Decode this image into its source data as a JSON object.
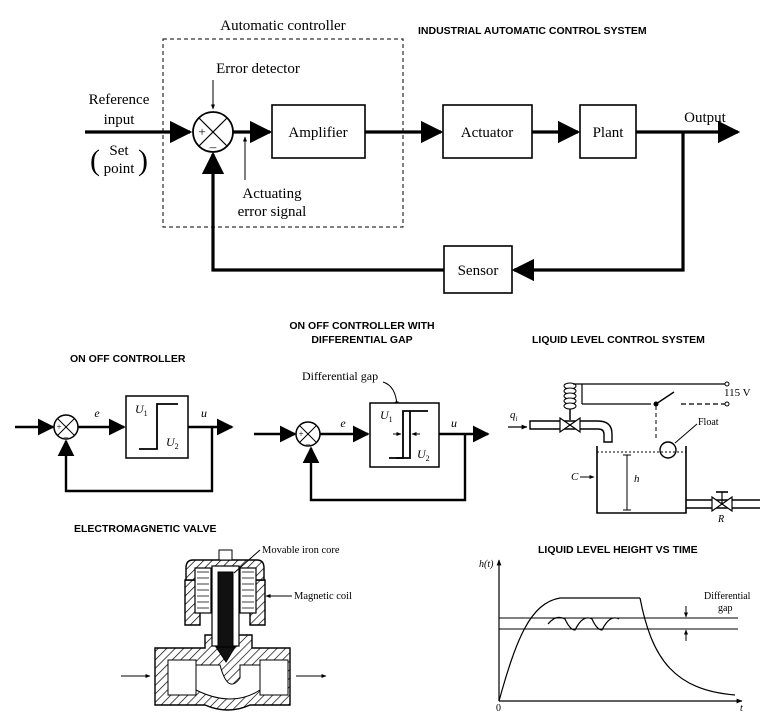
{
  "titles": {
    "main": "INDUSTRIAL AUTOMATIC CONTROL SYSTEM",
    "onoff": "ON OFF CONTROLLER",
    "gap_line1": "ON OFF CONTROLLER WITH",
    "gap_line2": "DIFFERENTIAL GAP",
    "liquid": "LIQUID LEVEL CONTROL SYSTEM",
    "valve": "ELECTROMAGNETIC VALVE",
    "height": "LIQUID LEVEL HEIGHT VS TIME"
  },
  "block_diagram": {
    "controller_label": "Automatic controller",
    "error_detector": "Error detector",
    "reference_line1": "Reference",
    "reference_line2": "input",
    "set_line1": "Set",
    "set_line2": "point",
    "plus": "+",
    "minus": "–",
    "actuating_line1": "Actuating",
    "actuating_line2": "error signal",
    "amplifier": "Amplifier",
    "actuator": "Actuator",
    "plant": "Plant",
    "output": "Output",
    "sensor": "Sensor"
  },
  "onoff": {
    "e": "e",
    "u": "u",
    "U1": "U",
    "U1_sub": "1",
    "U2": "U",
    "U2_sub": "2"
  },
  "gap": {
    "differential_gap": "Differential gap",
    "e": "e",
    "u": "u",
    "U1": "U",
    "U1_sub": "1",
    "U2": "U",
    "U2_sub": "2"
  },
  "liquid": {
    "qi": "q",
    "qi_sub": "i",
    "voltage": "115 V",
    "float": "Float",
    "C": "C",
    "h": "h",
    "R": "R"
  },
  "valve": {
    "core": "Movable iron core",
    "coil": "Magnetic coil"
  },
  "height_plot": {
    "ylabel": "h(t)",
    "xlabel": "t",
    "origin": "0",
    "gap_line1": "Differential",
    "gap_line2": "gap"
  }
}
